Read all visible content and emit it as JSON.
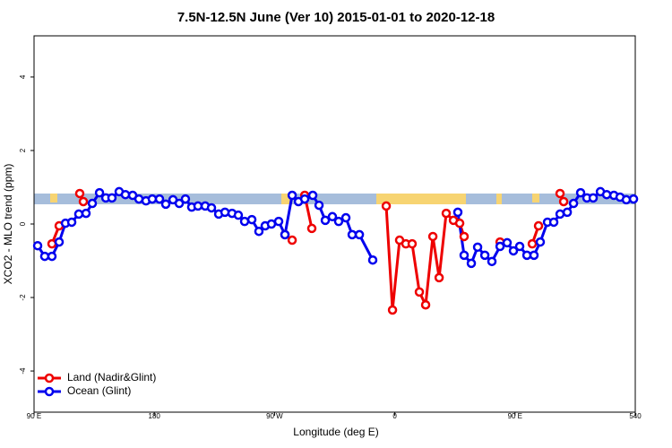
{
  "chart_data": {
    "type": "line",
    "title": "7.5N-12.5N June (Ver 10)   2015-01-01 to 2020-12-18",
    "x_label": "Longitude (deg E)",
    "y_label": "XCO2 - MLO trend (ppm)",
    "xlim": [
      90,
      540
    ],
    "ylim": [
      -5.12,
      5.12
    ],
    "xticks": [
      {
        "value": 90,
        "label": "90 E"
      },
      180,
      {
        "value": 270,
        "label": "90 W"
      },
      {
        "value": 360,
        "label": "0"
      },
      {
        "value": 450,
        "label": "90 E"
      },
      540
    ],
    "yticks": [
      -4,
      -2,
      0,
      2,
      4
    ],
    "legend": "bottom-left",
    "series": [
      {
        "name": "Land (Nadir&Glint)",
        "color": "#ee0000",
        "x": [
          103.4,
          108.8,
          null,
          124.2,
          126.9,
          null,
          277.8,
          283.2,
          null,
          292.6,
          297.9,
          null,
          353.6,
          358.3,
          363.6,
          368.3,
          373.0,
          378.4,
          383.1,
          388.5,
          393.2,
          398.5,
          403.9,
          408.6,
          411.9,
          null,
          438.8,
          null,
          462.9,
          467.6,
          null,
          483.7,
          486.4
        ],
        "values": [
          -0.54,
          -0.05,
          null,
          0.83,
          0.61,
          null,
          -0.29,
          -0.44,
          null,
          0.78,
          -0.12,
          null,
          0.49,
          -2.34,
          -0.44,
          -0.54,
          -0.54,
          -1.85,
          -2.2,
          -0.34,
          -1.46,
          0.29,
          0.1,
          0.02,
          -0.34,
          null,
          -0.49,
          null,
          -0.54,
          -0.05,
          null,
          0.83,
          0.61
        ]
      },
      {
        "name": "Ocean (Glint)",
        "color": "#0000ee",
        "x": [
          92.7,
          98.0,
          103.4,
          108.8,
          113.5,
          118.2,
          123.5,
          128.9,
          133.6,
          139.0,
          143.7,
          148.3,
          153.7,
          158.4,
          163.8,
          168.5,
          173.8,
          178.5,
          183.9,
          188.6,
          194.0,
          198.7,
          203.3,
          208.0,
          212.7,
          218.1,
          222.8,
          228.2,
          232.9,
          238.2,
          242.9,
          247.6,
          253.0,
          258.3,
          263.0,
          267.7,
          273.1,
          277.8,
          283.2,
          287.9,
          292.6,
          298.6,
          303.3,
          308.0,
          313.3,
          318.0,
          323.4,
          328.1,
          333.5,
          343.5,
          null,
          407.2,
          411.9,
          417.3,
          422.0,
          427.4,
          432.7,
          438.8,
          444.1,
          448.8,
          453.5,
          458.9,
          464.2,
          468.9,
          474.3,
          479.0,
          483.7,
          489.1,
          493.8,
          499.1,
          503.8,
          508.5,
          513.9,
          518.6,
          524.0,
          528.6,
          533.3,
          538.7
        ],
        "values": [
          -0.59,
          -0.88,
          -0.88,
          -0.49,
          0.02,
          0.05,
          0.27,
          0.29,
          0.56,
          0.85,
          0.71,
          0.71,
          0.88,
          0.8,
          0.78,
          0.68,
          0.63,
          0.68,
          0.68,
          0.54,
          0.66,
          0.56,
          0.68,
          0.46,
          0.49,
          0.49,
          0.44,
          0.27,
          0.32,
          0.29,
          0.24,
          0.07,
          0.12,
          -0.2,
          -0.05,
          0,
          0.07,
          -0.29,
          0.78,
          0.61,
          0.68,
          0.78,
          0.51,
          0.1,
          0.2,
          0.07,
          0.17,
          -0.29,
          -0.29,
          -0.98,
          null,
          0.32,
          -0.85,
          -1.07,
          -0.63,
          -0.85,
          -1.02,
          -0.61,
          -0.51,
          -0.73,
          -0.61,
          -0.85,
          -0.85,
          -0.49,
          0.05,
          0.05,
          0.27,
          0.32,
          0.56,
          0.85,
          0.71,
          0.71,
          0.88,
          0.8,
          0.78,
          0.73,
          0.66,
          0.68
        ]
      }
    ]
  }
}
